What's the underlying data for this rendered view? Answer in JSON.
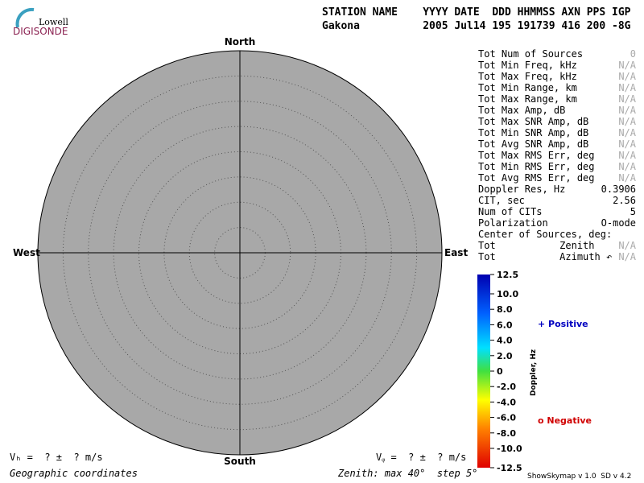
{
  "logo": {
    "top": "Lowell",
    "bottom": "DIGISONDE"
  },
  "header": {
    "line1": "STATION NAME    YYYY DATE  DDD HHMMSS AXN PPS IGP",
    "line2": "Gakona          2005 Jul14 195 191739 416 200 -8G"
  },
  "compass": {
    "north": "North",
    "south": "South",
    "west": "West",
    "east": "East"
  },
  "stats": [
    [
      "Tot Num of Sources",
      "0"
    ],
    [
      "Tot Min Freq, kHz",
      "N/A"
    ],
    [
      "Tot Max Freq, kHz",
      "N/A"
    ],
    [
      "Tot Min Range, km",
      "N/A"
    ],
    [
      "Tot Max Range, km",
      "N/A"
    ],
    [
      "Tot Max Amp, dB",
      "N/A"
    ],
    [
      "Tot Max SNR Amp, dB",
      "N/A"
    ],
    [
      "Tot Min SNR Amp, dB",
      "N/A"
    ],
    [
      "Tot Avg SNR Amp, dB",
      "N/A"
    ],
    [
      "Tot Max RMS Err, deg",
      "N/A"
    ],
    [
      "Tot Min RMS Err, deg",
      "N/A"
    ],
    [
      "Tot Avg RMS Err, deg",
      "N/A"
    ],
    [
      "Doppler Res, Hz",
      "0.3906"
    ],
    [
      "CIT, sec",
      "2.56"
    ],
    [
      "Num of CITs",
      "5"
    ],
    [
      "Polarization",
      "O-mode"
    ],
    [
      "Center of Sources, deg:",
      ""
    ],
    [
      "Tot           Zenith",
      "N/A"
    ],
    [
      "Tot           Azimuth ↶",
      "N/A"
    ]
  ],
  "colorbar": {
    "title": "Doppler, Hz",
    "ticks": [
      "12.5",
      "10.0",
      "8.0",
      "6.0",
      "4.0",
      "2.0",
      "0",
      "-2.0",
      "-4.0",
      "-6.0",
      "-8.0",
      "-10.0",
      "-12.5"
    ]
  },
  "legend": {
    "positive": "+ Positive",
    "negative": "o Negative"
  },
  "footer": {
    "vh": "Vₕ =  ? ±  ? m/s",
    "vz": "Vᵩ =  ? ±  ? m/s",
    "coords": "Geographic coordinates",
    "zenith": "Zenith: max 40°  step 5°",
    "version": "ShowSkymap v 1.0  SD v 4.2"
  }
}
